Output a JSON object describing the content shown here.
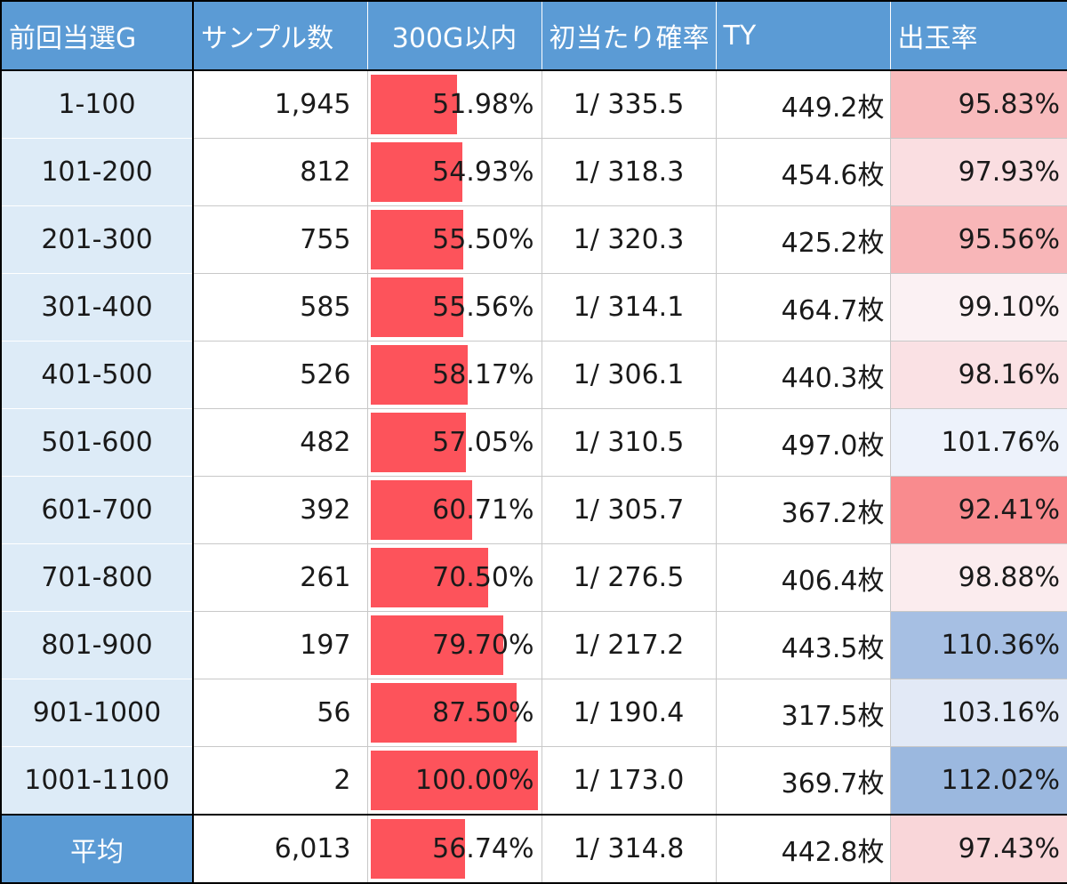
{
  "chart_data": {
    "type": "table",
    "headers": [
      "前回当選G",
      "サンプル数",
      "300G以内",
      "初当たり確率",
      "TY",
      "出玉率"
    ],
    "bar_max": 100,
    "rows": [
      {
        "range": "1-100",
        "samples": "1,945",
        "within300": 51.98,
        "within300_label": "51.98%",
        "prob": "1/ 335.5",
        "ty": "449.2枚",
        "rate": "95.83%",
        "rate_color": "#f8bbbd"
      },
      {
        "range": "101-200",
        "samples": "812",
        "within300": 54.93,
        "within300_label": "54.93%",
        "prob": "1/ 318.3",
        "ty": "454.6枚",
        "rate": "97.93%",
        "rate_color": "#fadee1"
      },
      {
        "range": "201-300",
        "samples": "755",
        "within300": 55.5,
        "within300_label": "55.50%",
        "prob": "1/ 320.3",
        "ty": "425.2枚",
        "rate": "95.56%",
        "rate_color": "#f8b6b8"
      },
      {
        "range": "301-400",
        "samples": "585",
        "within300": 55.56,
        "within300_label": "55.56%",
        "prob": "1/ 314.1",
        "ty": "464.7枚",
        "rate": "99.10%",
        "rate_color": "#fbf1f3"
      },
      {
        "range": "401-500",
        "samples": "526",
        "within300": 58.17,
        "within300_label": "58.17%",
        "prob": "1/ 306.1",
        "ty": "440.3枚",
        "rate": "98.16%",
        "rate_color": "#fae1e4"
      },
      {
        "range": "501-600",
        "samples": "482",
        "within300": 57.05,
        "within300_label": "57.05%",
        "prob": "1/ 310.5",
        "ty": "497.0枚",
        "rate": "101.76%",
        "rate_color": "#edf2fb"
      },
      {
        "range": "601-700",
        "samples": "392",
        "within300": 60.71,
        "within300_label": "60.71%",
        "prob": "1/ 305.7",
        "ty": "367.2枚",
        "rate": "92.41%",
        "rate_color": "#f98b8e"
      },
      {
        "range": "701-800",
        "samples": "261",
        "within300": 70.5,
        "within300_label": "70.50%",
        "prob": "1/ 276.5",
        "ty": "406.4枚",
        "rate": "98.88%",
        "rate_color": "#fbecee"
      },
      {
        "range": "801-900",
        "samples": "197",
        "within300": 79.7,
        "within300_label": "79.70%",
        "prob": "1/ 217.2",
        "ty": "443.5枚",
        "rate": "110.36%",
        "rate_color": "#a6bfe3"
      },
      {
        "range": "901-1000",
        "samples": "56",
        "within300": 87.5,
        "within300_label": "87.50%",
        "prob": "1/ 190.4",
        "ty": "317.5枚",
        "rate": "103.16%",
        "rate_color": "#e2e9f6"
      },
      {
        "range": "1001-1100",
        "samples": "2",
        "within300": 100.0,
        "within300_label": "100.00%",
        "prob": "1/ 173.0",
        "ty": "369.7枚",
        "rate": "112.02%",
        "rate_color": "#9bb8df"
      }
    ],
    "average": {
      "range": "平均",
      "samples": "6,013",
      "within300": 56.74,
      "within300_label": "56.74%",
      "prob": "1/ 314.8",
      "ty": "442.8枚",
      "rate": "97.43%",
      "rate_color": "#f9d6d9"
    },
    "colors": {
      "header": "#5b9bd5",
      "range_bg": "#ddebf7",
      "bar": "#fd535b"
    }
  }
}
